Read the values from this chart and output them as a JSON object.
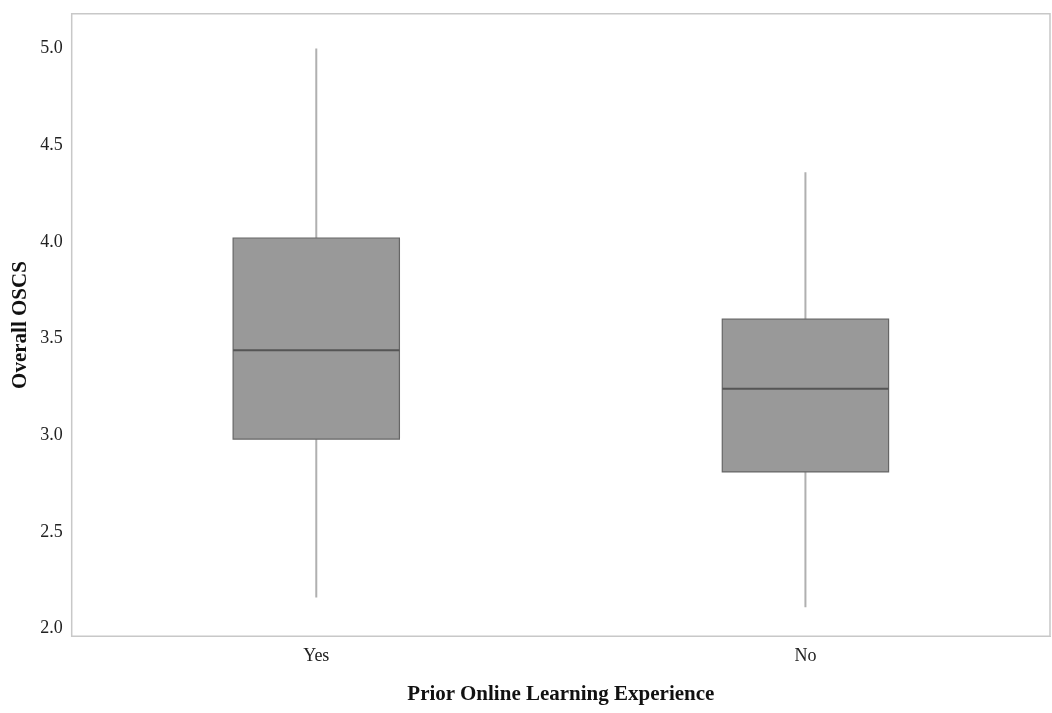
{
  "chart_data": {
    "type": "box",
    "xlabel": "Prior Online Learning Experience",
    "ylabel": "Overall OSCS",
    "categories": [
      "Yes",
      "No"
    ],
    "boxes": [
      {
        "low": 2.16,
        "q1": 2.98,
        "median": 3.44,
        "q3": 4.02,
        "high": 5.0
      },
      {
        "low": 2.11,
        "q1": 2.81,
        "median": 3.24,
        "q3": 3.6,
        "high": 4.36
      }
    ],
    "color": "#999999",
    "ylim": [
      1.96,
      5.18
    ],
    "yticks": [
      {
        "value": 2,
        "label": "2.0"
      },
      2.5,
      {
        "value": 3,
        "label": "3.0"
      },
      3.5,
      {
        "value": 4,
        "label": "4.0"
      },
      4.5,
      {
        "value": 5,
        "label": "5.0"
      }
    ],
    "grid": false,
    "legend": false
  }
}
